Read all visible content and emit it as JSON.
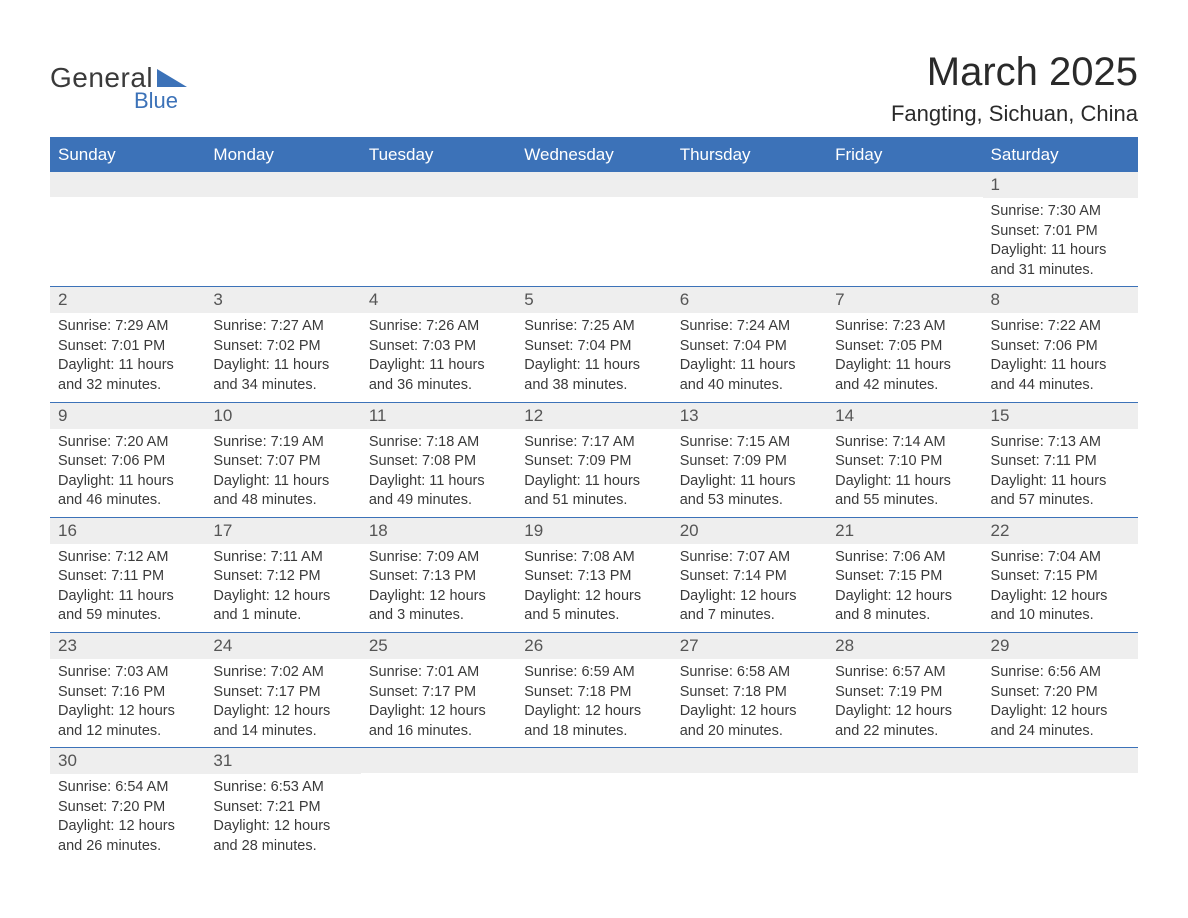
{
  "logo": {
    "line1": "General",
    "line2": "Blue",
    "accent_color": "#3c72b8",
    "text_color": "#3a3a3a"
  },
  "title": "March 2025",
  "location": "Fangting, Sichuan, China",
  "header_bg": "#3c72b8",
  "header_text": "#ffffff",
  "daynum_bg": "#eeeeee",
  "border_color": "#3c72b8",
  "day_headers": [
    "Sunday",
    "Monday",
    "Tuesday",
    "Wednesday",
    "Thursday",
    "Friday",
    "Saturday"
  ],
  "weeks": [
    [
      null,
      null,
      null,
      null,
      null,
      null,
      {
        "n": "1",
        "sunrise": "7:30 AM",
        "sunset": "7:01 PM",
        "dl": "11 hours and 31 minutes."
      }
    ],
    [
      {
        "n": "2",
        "sunrise": "7:29 AM",
        "sunset": "7:01 PM",
        "dl": "11 hours and 32 minutes."
      },
      {
        "n": "3",
        "sunrise": "7:27 AM",
        "sunset": "7:02 PM",
        "dl": "11 hours and 34 minutes."
      },
      {
        "n": "4",
        "sunrise": "7:26 AM",
        "sunset": "7:03 PM",
        "dl": "11 hours and 36 minutes."
      },
      {
        "n": "5",
        "sunrise": "7:25 AM",
        "sunset": "7:04 PM",
        "dl": "11 hours and 38 minutes."
      },
      {
        "n": "6",
        "sunrise": "7:24 AM",
        "sunset": "7:04 PM",
        "dl": "11 hours and 40 minutes."
      },
      {
        "n": "7",
        "sunrise": "7:23 AM",
        "sunset": "7:05 PM",
        "dl": "11 hours and 42 minutes."
      },
      {
        "n": "8",
        "sunrise": "7:22 AM",
        "sunset": "7:06 PM",
        "dl": "11 hours and 44 minutes."
      }
    ],
    [
      {
        "n": "9",
        "sunrise": "7:20 AM",
        "sunset": "7:06 PM",
        "dl": "11 hours and 46 minutes."
      },
      {
        "n": "10",
        "sunrise": "7:19 AM",
        "sunset": "7:07 PM",
        "dl": "11 hours and 48 minutes."
      },
      {
        "n": "11",
        "sunrise": "7:18 AM",
        "sunset": "7:08 PM",
        "dl": "11 hours and 49 minutes."
      },
      {
        "n": "12",
        "sunrise": "7:17 AM",
        "sunset": "7:09 PM",
        "dl": "11 hours and 51 minutes."
      },
      {
        "n": "13",
        "sunrise": "7:15 AM",
        "sunset": "7:09 PM",
        "dl": "11 hours and 53 minutes."
      },
      {
        "n": "14",
        "sunrise": "7:14 AM",
        "sunset": "7:10 PM",
        "dl": "11 hours and 55 minutes."
      },
      {
        "n": "15",
        "sunrise": "7:13 AM",
        "sunset": "7:11 PM",
        "dl": "11 hours and 57 minutes."
      }
    ],
    [
      {
        "n": "16",
        "sunrise": "7:12 AM",
        "sunset": "7:11 PM",
        "dl": "11 hours and 59 minutes."
      },
      {
        "n": "17",
        "sunrise": "7:11 AM",
        "sunset": "7:12 PM",
        "dl": "12 hours and 1 minute."
      },
      {
        "n": "18",
        "sunrise": "7:09 AM",
        "sunset": "7:13 PM",
        "dl": "12 hours and 3 minutes."
      },
      {
        "n": "19",
        "sunrise": "7:08 AM",
        "sunset": "7:13 PM",
        "dl": "12 hours and 5 minutes."
      },
      {
        "n": "20",
        "sunrise": "7:07 AM",
        "sunset": "7:14 PM",
        "dl": "12 hours and 7 minutes."
      },
      {
        "n": "21",
        "sunrise": "7:06 AM",
        "sunset": "7:15 PM",
        "dl": "12 hours and 8 minutes."
      },
      {
        "n": "22",
        "sunrise": "7:04 AM",
        "sunset": "7:15 PM",
        "dl": "12 hours and 10 minutes."
      }
    ],
    [
      {
        "n": "23",
        "sunrise": "7:03 AM",
        "sunset": "7:16 PM",
        "dl": "12 hours and 12 minutes."
      },
      {
        "n": "24",
        "sunrise": "7:02 AM",
        "sunset": "7:17 PM",
        "dl": "12 hours and 14 minutes."
      },
      {
        "n": "25",
        "sunrise": "7:01 AM",
        "sunset": "7:17 PM",
        "dl": "12 hours and 16 minutes."
      },
      {
        "n": "26",
        "sunrise": "6:59 AM",
        "sunset": "7:18 PM",
        "dl": "12 hours and 18 minutes."
      },
      {
        "n": "27",
        "sunrise": "6:58 AM",
        "sunset": "7:18 PM",
        "dl": "12 hours and 20 minutes."
      },
      {
        "n": "28",
        "sunrise": "6:57 AM",
        "sunset": "7:19 PM",
        "dl": "12 hours and 22 minutes."
      },
      {
        "n": "29",
        "sunrise": "6:56 AM",
        "sunset": "7:20 PM",
        "dl": "12 hours and 24 minutes."
      }
    ],
    [
      {
        "n": "30",
        "sunrise": "6:54 AM",
        "sunset": "7:20 PM",
        "dl": "12 hours and 26 minutes."
      },
      {
        "n": "31",
        "sunrise": "6:53 AM",
        "sunset": "7:21 PM",
        "dl": "12 hours and 28 minutes."
      },
      null,
      null,
      null,
      null,
      null
    ]
  ],
  "labels": {
    "sunrise": "Sunrise:",
    "sunset": "Sunset:",
    "daylight": "Daylight:"
  }
}
